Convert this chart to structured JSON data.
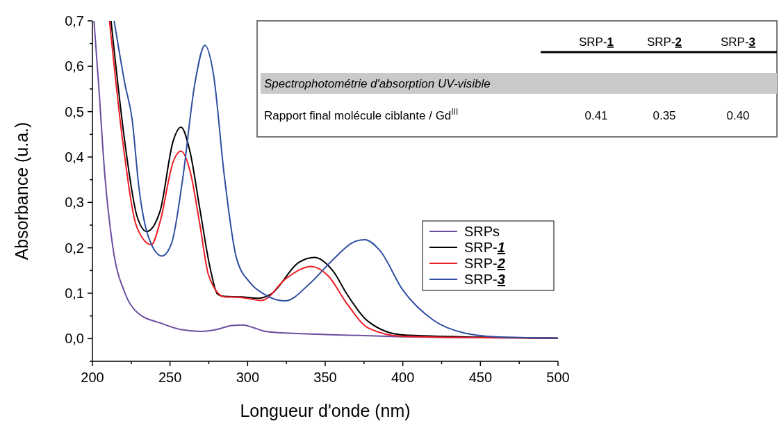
{
  "chart_data": {
    "type": "line",
    "xlabel": "Longueur d'onde (nm)",
    "ylabel": "Absorbance (u.a.)",
    "xlim": [
      200,
      500
    ],
    "ylim": [
      -0.05,
      0.7
    ],
    "xticks": [
      200,
      {
        "value": 225,
        "label": null
      },
      250,
      {
        "value": 275,
        "label": null
      },
      300,
      {
        "value": 325,
        "label": null
      },
      350,
      {
        "value": 375,
        "label": null
      },
      400,
      {
        "value": 425,
        "label": null
      },
      450,
      {
        "value": 475,
        "label": null
      },
      500
    ],
    "yticks": [
      {
        "value": -0.05,
        "label": null
      },
      {
        "value": 0,
        "label": "0,0"
      },
      {
        "value": 0.05,
        "label": null
      },
      {
        "value": 0.1,
        "label": "0,1"
      },
      {
        "value": 0.15,
        "label": null
      },
      {
        "value": 0.2,
        "label": "0,2"
      },
      {
        "value": 0.25,
        "label": null
      },
      {
        "value": 0.3,
        "label": "0,3"
      },
      {
        "value": 0.35,
        "label": null
      },
      {
        "value": 0.4,
        "label": "0,4"
      },
      {
        "value": 0.45,
        "label": null
      },
      {
        "value": 0.5,
        "label": "0,5"
      },
      {
        "value": 0.55,
        "label": null
      },
      {
        "value": 0.6,
        "label": "0,6"
      },
      {
        "value": 0.65,
        "label": null
      },
      {
        "value": 0.7,
        "label": "0,7"
      }
    ],
    "grid": false,
    "legend": "right",
    "marker": "none",
    "line_style": "solid",
    "series": [
      {
        "name": "SRPs",
        "color": "#6a4ea0",
        "x": [
          201,
          204,
          208,
          213,
          221,
          229,
          244,
          257,
          270,
          280,
          290,
          297,
          303,
          310,
          320,
          350,
          400,
          450,
          500
        ],
        "values": [
          0.7,
          0.56,
          0.36,
          0.205,
          0.1,
          0.057,
          0.034,
          0.02,
          0.016,
          0.02,
          0.029,
          0.03,
          0.025,
          0.017,
          0.013,
          0.009,
          0.004,
          0.002,
          0.001
        ]
      },
      {
        "name": "SRP-1",
        "color": "#000000",
        "x": [
          212,
          221,
          228.7,
          235,
          243.5,
          252,
          257,
          263,
          269,
          276,
          280.6,
          285,
          296,
          307,
          315,
          333,
          343,
          355,
          364,
          378,
          400,
          450,
          500
        ],
        "values": [
          0.7,
          0.43,
          0.27,
          0.236,
          0.28,
          0.435,
          0.466,
          0.41,
          0.29,
          0.153,
          0.098,
          0.093,
          0.092,
          0.089,
          0.098,
          0.168,
          0.179,
          0.149,
          0.098,
          0.037,
          0.008,
          0.003,
          0.001
        ]
      },
      {
        "name": "SRP-2",
        "color": "#ee1c25",
        "x": [
          211,
          219.7,
          228.7,
          238,
          243.5,
          252,
          257,
          263,
          269,
          275,
          285,
          295,
          309,
          325,
          341,
          352,
          364,
          378,
          400,
          450,
          500
        ],
        "values": [
          0.7,
          0.43,
          0.245,
          0.207,
          0.256,
          0.389,
          0.413,
          0.368,
          0.256,
          0.138,
          0.092,
          0.091,
          0.084,
          0.133,
          0.159,
          0.138,
          0.077,
          0.023,
          0.005,
          0.002,
          0.001
        ]
      },
      {
        "name": "SRP-3",
        "color": "#2e4fa0",
        "x": [
          214,
          221,
          225.5,
          230,
          236,
          244.8,
          251,
          258,
          266,
          272.5,
          278,
          285,
          292.7,
          301.6,
          310.6,
          324,
          340.6,
          355,
          370,
          375.5,
          385,
          400,
          420,
          440,
          460,
          500
        ],
        "values": [
          0.7,
          0.56,
          0.485,
          0.332,
          0.225,
          0.182,
          0.21,
          0.348,
          0.562,
          0.646,
          0.582,
          0.358,
          0.179,
          0.123,
          0.098,
          0.083,
          0.123,
          0.174,
          0.215,
          0.218,
          0.195,
          0.107,
          0.04,
          0.012,
          0.004,
          0.001
        ]
      }
    ],
    "annotations": [
      "SRP-1",
      "SRP-2",
      "SRP-3",
      "Spectrophotométrie d'absorption UV-visible",
      "Rapport final molécule ciblante / Gd$^{III}$",
      "0.41",
      "0.35",
      "0.40"
    ]
  }
}
